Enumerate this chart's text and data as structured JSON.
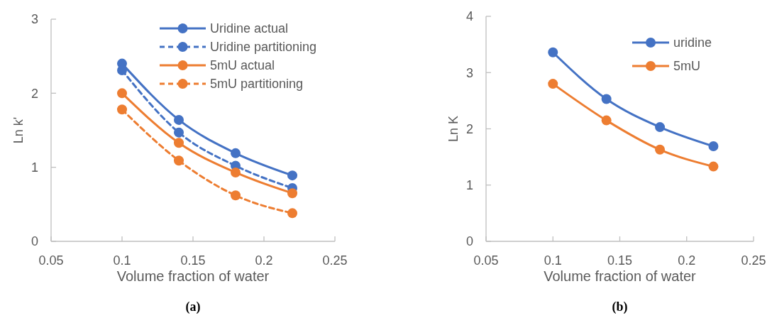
{
  "chart_data": [
    {
      "type": "line",
      "xlabel": "Volume fraction of water",
      "ylabel": "Ln k'",
      "annotations": [
        "(a)"
      ],
      "x": [
        0.1,
        0.14,
        0.18,
        0.22
      ],
      "xlim": [
        0.05,
        0.25
      ],
      "xticks": [
        0.05,
        0.1,
        0.15,
        0.2,
        0.25
      ],
      "ylim": [
        0,
        3
      ],
      "yticks": [
        0,
        1,
        2,
        3
      ],
      "legend": "top right",
      "marker": "circle",
      "series": [
        {
          "name": "Uridine actual",
          "color": "#4472c4",
          "line_style": "solid",
          "values": [
            2.4,
            1.64,
            1.19,
            0.89
          ]
        },
        {
          "name": "Uridine partitioning",
          "color": "#4472c4",
          "line_style": "dashed",
          "values": [
            2.31,
            1.47,
            1.02,
            0.72
          ]
        },
        {
          "name": "5mU actual",
          "color": "#ed7d31",
          "line_style": "solid",
          "values": [
            2.0,
            1.33,
            0.93,
            0.65
          ]
        },
        {
          "name": "5mU partitioning",
          "color": "#ed7d31",
          "line_style": "dashed",
          "values": [
            1.78,
            1.09,
            0.62,
            0.38
          ]
        }
      ]
    },
    {
      "type": "line",
      "xlabel": "Volume fraction of water",
      "ylabel": "Ln K",
      "annotations": [
        "(b)"
      ],
      "x": [
        0.1,
        0.14,
        0.18,
        0.22
      ],
      "xlim": [
        0.05,
        0.25
      ],
      "xticks": [
        0.05,
        0.1,
        0.15,
        0.2,
        0.25
      ],
      "ylim": [
        0,
        4
      ],
      "yticks": [
        0,
        1,
        2,
        3,
        4
      ],
      "legend": "top right",
      "marker": "circle",
      "series": [
        {
          "name": "uridine",
          "color": "#4472c4",
          "line_style": "solid",
          "values": [
            3.36,
            2.53,
            2.03,
            1.69
          ]
        },
        {
          "name": "5mU",
          "color": "#ed7d31",
          "line_style": "solid",
          "values": [
            2.8,
            2.15,
            1.63,
            1.33
          ]
        }
      ]
    }
  ]
}
